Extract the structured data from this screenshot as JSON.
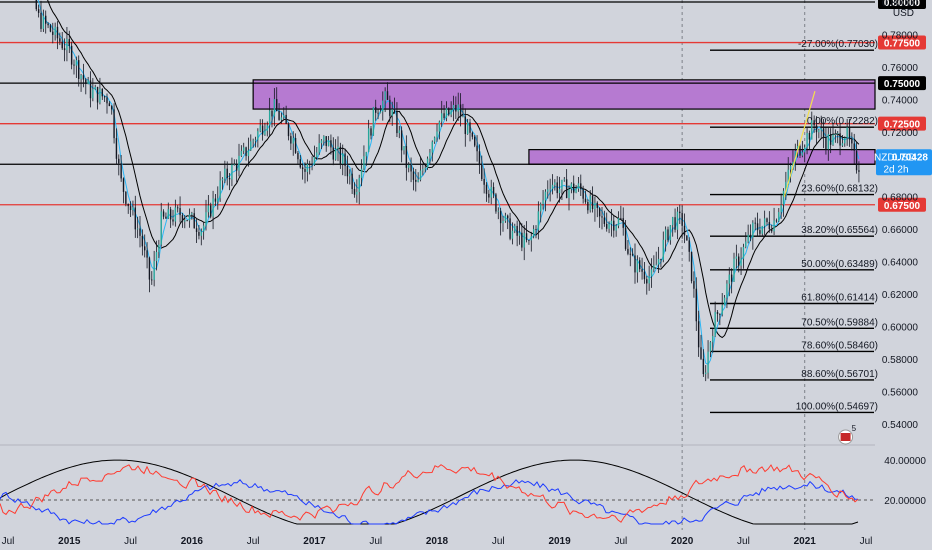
{
  "chart_data": {
    "type": "candlestick",
    "symbol": "NZDUSD",
    "currency": "USD",
    "countdown": "2d 2h",
    "last_price": 0.70428,
    "ylim": [
      0.53,
      0.8
    ],
    "price_ticks": [
      0.54,
      0.56,
      0.58,
      0.6,
      0.62,
      0.64,
      0.66,
      0.68,
      0.7,
      0.72,
      0.74,
      0.76,
      0.78,
      0.8
    ],
    "x_labels": [
      "Jul",
      "2015",
      "Jul",
      "2016",
      "Jul",
      "2017",
      "Jul",
      "2018",
      "Jul",
      "2019",
      "Jul",
      "2020",
      "Jul",
      "2021",
      "Jul"
    ],
    "horizontal_levels": [
      {
        "label": "0.80000",
        "value": 0.8,
        "color": "#000000"
      },
      {
        "label": "0.77500",
        "value": 0.775,
        "color": "#e53935"
      },
      {
        "label": "0.75000",
        "value": 0.75,
        "color": "#000000"
      },
      {
        "label": "0.72500",
        "value": 0.725,
        "color": "#e53935"
      },
      {
        "label": "0.70000",
        "value": 0.7,
        "color": "#000000"
      },
      {
        "label": "0.67500",
        "value": 0.675,
        "color": "#e53935"
      }
    ],
    "zones": [
      {
        "from": 0.734,
        "to": 0.752,
        "x_start": "2016-07",
        "color": "#b67ad1"
      },
      {
        "from": 0.7,
        "to": 0.709,
        "x_start": "2018-10",
        "color": "#b67ad1"
      }
    ],
    "fib_levels": [
      {
        "label": "-27.00%(0.77030)",
        "value": 0.7703
      },
      {
        "label": "0.00%(0.72282)",
        "value": 0.72282
      },
      {
        "label": "23.60%(0.68132)",
        "value": 0.68132
      },
      {
        "label": "38.20%(0.65564)",
        "value": 0.65564
      },
      {
        "label": "50.00%(0.63489)",
        "value": 0.63489
      },
      {
        "label": "61.80%(0.61414)",
        "value": 0.61414
      },
      {
        "label": "70.50%(0.59884)",
        "value": 0.59884
      },
      {
        "label": "78.60%(0.58460)",
        "value": 0.5846
      },
      {
        "label": "88.60%(0.56701)",
        "value": 0.56701
      },
      {
        "label": "100.00%(0.54697)",
        "value": 0.54697
      }
    ],
    "path_points": [
      [
        "2014-07",
        0.855
      ],
      [
        "2014-10",
        0.79
      ],
      [
        "2015-01",
        0.77
      ],
      [
        "2015-03",
        0.745
      ],
      [
        "2015-05",
        0.74
      ],
      [
        "2015-06",
        0.69
      ],
      [
        "2015-08",
        0.655
      ],
      [
        "2015-09",
        0.625
      ],
      [
        "2015-10",
        0.665
      ],
      [
        "2015-12",
        0.67
      ],
      [
        "2016-02",
        0.66
      ],
      [
        "2016-04",
        0.69
      ],
      [
        "2016-06",
        0.705
      ],
      [
        "2016-08",
        0.725
      ],
      [
        "2016-09",
        0.735
      ],
      [
        "2016-11",
        0.715
      ],
      [
        "2016-12",
        0.695
      ],
      [
        "2017-02",
        0.715
      ],
      [
        "2017-04",
        0.7
      ],
      [
        "2017-05",
        0.685
      ],
      [
        "2017-07",
        0.735
      ],
      [
        "2017-08",
        0.74
      ],
      [
        "2017-09",
        0.725
      ],
      [
        "2017-10",
        0.7
      ],
      [
        "2017-11",
        0.685
      ],
      [
        "2018-01",
        0.725
      ],
      [
        "2018-03",
        0.735
      ],
      [
        "2018-04",
        0.72
      ],
      [
        "2018-06",
        0.685
      ],
      [
        "2018-08",
        0.66
      ],
      [
        "2018-10",
        0.65
      ],
      [
        "2018-12",
        0.69
      ],
      [
        "2019-01",
        0.685
      ],
      [
        "2019-03",
        0.685
      ],
      [
        "2019-05",
        0.665
      ],
      [
        "2019-07",
        0.665
      ],
      [
        "2019-08",
        0.64
      ],
      [
        "2019-10",
        0.63
      ],
      [
        "2019-12",
        0.665
      ],
      [
        "2020-01",
        0.665
      ],
      [
        "2020-02",
        0.63
      ],
      [
        "2020-03",
        0.565
      ],
      [
        "2020-04",
        0.6
      ],
      [
        "2020-06",
        0.635
      ],
      [
        "2020-08",
        0.66
      ],
      [
        "2020-10",
        0.665
      ],
      [
        "2020-12",
        0.705
      ],
      [
        "2021-02",
        0.725
      ],
      [
        "2021-03",
        0.715
      ],
      [
        "2021-04",
        0.715
      ],
      [
        "2021-05",
        0.72
      ],
      [
        "2021-06",
        0.7
      ]
    ],
    "moving_averages": [
      {
        "name": "",
        "color": "#000000",
        "period": 12
      },
      {
        "name": "",
        "color": "#29b6f6",
        "period": 4
      }
    ],
    "indicator": {
      "level_label": "20.00000",
      "level_value": 20,
      "tick_label": "40.00000",
      "tick_value": 40,
      "series": [
        {
          "name": "",
          "color": "#000000"
        },
        {
          "name": "",
          "color": "#1e3cff"
        },
        {
          "name": "",
          "color": "#ff3b30"
        }
      ]
    }
  }
}
